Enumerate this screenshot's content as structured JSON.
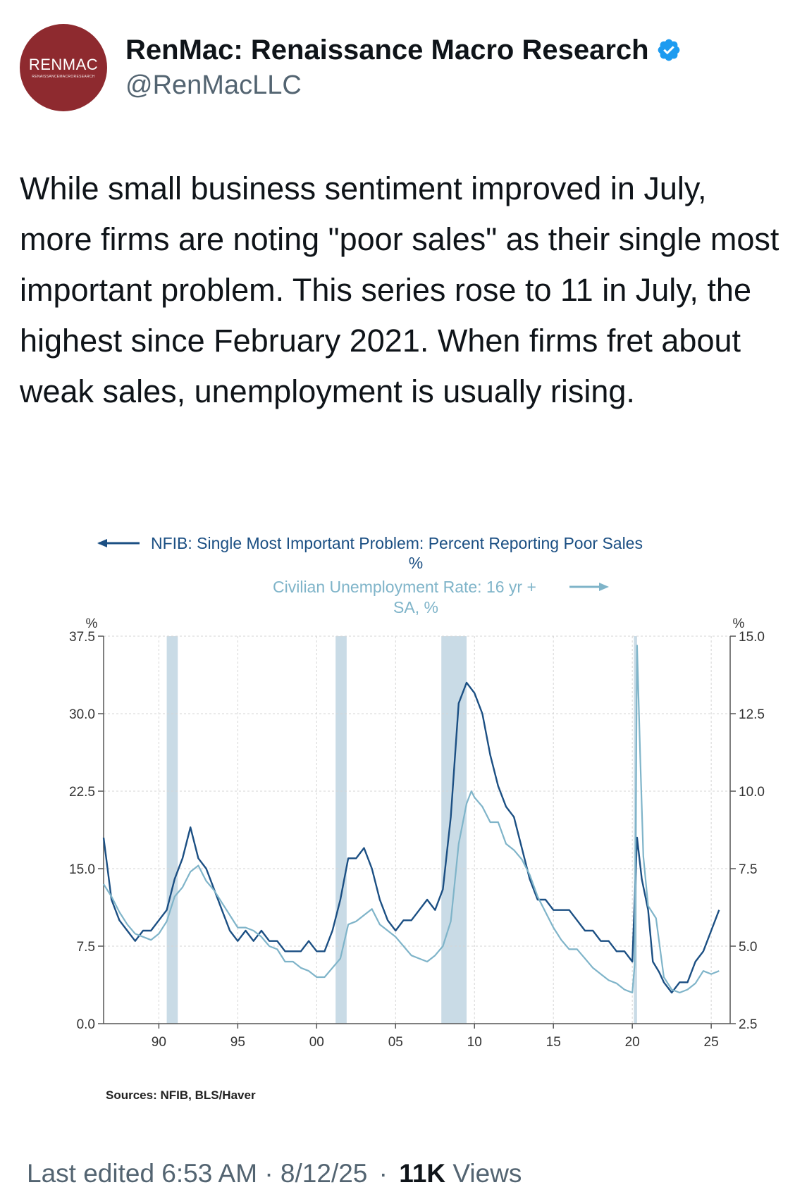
{
  "author": {
    "display_name": "RenMac: Renaissance Macro Research",
    "handle": "@RenMacLLC",
    "logo_text_main": "RENMAC",
    "logo_text_sub": "RENAISSANCEMACRORESEARCH",
    "brand_color": "#8e2a2f",
    "verified_badge_color": "#1d9bf0"
  },
  "tweet": {
    "text": "While small business sentiment improved in July, more firms are noting \"poor sales\" as their single most important problem. This series rose to 11 in July, the highest since February 2021. When firms fret about weak sales, unemployment is usually rising."
  },
  "meta": {
    "edited_label": "Last edited 6:53 AM · 8/12/25",
    "separator": "·",
    "views_count": "11K",
    "views_label": "Views"
  },
  "chart_data": {
    "type": "line",
    "series": [
      {
        "name": "NFIB: Single Most Important Problem: Percent Reporting Poor Sales",
        "unit": "%",
        "axis": "left",
        "color": "#1b4f83",
        "points": [
          [
            1986.5,
            18
          ],
          [
            1987.0,
            12
          ],
          [
            1987.5,
            10
          ],
          [
            1988.0,
            9
          ],
          [
            1988.5,
            8
          ],
          [
            1989.0,
            9
          ],
          [
            1989.5,
            9
          ],
          [
            1990.0,
            10
          ],
          [
            1990.5,
            11
          ],
          [
            1991.0,
            14
          ],
          [
            1991.5,
            16
          ],
          [
            1992.0,
            19
          ],
          [
            1992.5,
            16
          ],
          [
            1993.0,
            15
          ],
          [
            1993.5,
            13
          ],
          [
            1994.0,
            11
          ],
          [
            1994.5,
            9
          ],
          [
            1995.0,
            8
          ],
          [
            1995.5,
            9
          ],
          [
            1996.0,
            8
          ],
          [
            1996.5,
            9
          ],
          [
            1997.0,
            8
          ],
          [
            1997.5,
            8
          ],
          [
            1998.0,
            7
          ],
          [
            1998.5,
            7
          ],
          [
            1999.0,
            7
          ],
          [
            1999.5,
            8
          ],
          [
            2000.0,
            7
          ],
          [
            2000.5,
            7
          ],
          [
            2001.0,
            9
          ],
          [
            2001.5,
            12
          ],
          [
            2002.0,
            16
          ],
          [
            2002.5,
            16
          ],
          [
            2003.0,
            17
          ],
          [
            2003.5,
            15
          ],
          [
            2004.0,
            12
          ],
          [
            2004.5,
            10
          ],
          [
            2005.0,
            9
          ],
          [
            2005.5,
            10
          ],
          [
            2006.0,
            10
          ],
          [
            2006.5,
            11
          ],
          [
            2007.0,
            12
          ],
          [
            2007.5,
            11
          ],
          [
            2008.0,
            13
          ],
          [
            2008.5,
            20
          ],
          [
            2009.0,
            31
          ],
          [
            2009.5,
            33
          ],
          [
            2010.0,
            32
          ],
          [
            2010.5,
            30
          ],
          [
            2011.0,
            26
          ],
          [
            2011.5,
            23
          ],
          [
            2012.0,
            21
          ],
          [
            2012.5,
            20
          ],
          [
            2013.0,
            17
          ],
          [
            2013.5,
            14
          ],
          [
            2014.0,
            12
          ],
          [
            2014.5,
            12
          ],
          [
            2015.0,
            11
          ],
          [
            2015.5,
            11
          ],
          [
            2016.0,
            11
          ],
          [
            2016.5,
            10
          ],
          [
            2017.0,
            9
          ],
          [
            2017.5,
            9
          ],
          [
            2018.0,
            8
          ],
          [
            2018.5,
            8
          ],
          [
            2019.0,
            7
          ],
          [
            2019.5,
            7
          ],
          [
            2020.0,
            6
          ],
          [
            2020.3,
            18
          ],
          [
            2020.6,
            14
          ],
          [
            2021.0,
            11
          ],
          [
            2021.3,
            6
          ],
          [
            2021.7,
            5
          ],
          [
            2022.0,
            4
          ],
          [
            2022.5,
            3
          ],
          [
            2023.0,
            4
          ],
          [
            2023.5,
            4
          ],
          [
            2024.0,
            6
          ],
          [
            2024.5,
            7
          ],
          [
            2025.0,
            9
          ],
          [
            2025.5,
            11
          ]
        ]
      },
      {
        "name": "Civilian Unemployment Rate: 16 yr + SA, %",
        "unit": "%",
        "axis": "right",
        "color": "#7fb4c9",
        "points": [
          [
            1986.5,
            7.0
          ],
          [
            1987.0,
            6.6
          ],
          [
            1987.5,
            6.1
          ],
          [
            1988.0,
            5.7
          ],
          [
            1988.5,
            5.4
          ],
          [
            1989.0,
            5.3
          ],
          [
            1989.5,
            5.2
          ],
          [
            1990.0,
            5.4
          ],
          [
            1990.5,
            5.8
          ],
          [
            1991.0,
            6.6
          ],
          [
            1991.5,
            6.9
          ],
          [
            1992.0,
            7.4
          ],
          [
            1992.5,
            7.6
          ],
          [
            1993.0,
            7.1
          ],
          [
            1993.5,
            6.8
          ],
          [
            1994.0,
            6.4
          ],
          [
            1994.5,
            6.0
          ],
          [
            1995.0,
            5.6
          ],
          [
            1995.5,
            5.6
          ],
          [
            1996.0,
            5.5
          ],
          [
            1996.5,
            5.3
          ],
          [
            1997.0,
            5.0
          ],
          [
            1997.5,
            4.9
          ],
          [
            1998.0,
            4.5
          ],
          [
            1998.5,
            4.5
          ],
          [
            1999.0,
            4.3
          ],
          [
            1999.5,
            4.2
          ],
          [
            2000.0,
            4.0
          ],
          [
            2000.5,
            4.0
          ],
          [
            2001.0,
            4.3
          ],
          [
            2001.5,
            4.6
          ],
          [
            2002.0,
            5.7
          ],
          [
            2002.5,
            5.8
          ],
          [
            2003.0,
            6.0
          ],
          [
            2003.5,
            6.2
          ],
          [
            2004.0,
            5.7
          ],
          [
            2004.5,
            5.5
          ],
          [
            2005.0,
            5.3
          ],
          [
            2005.5,
            5.0
          ],
          [
            2006.0,
            4.7
          ],
          [
            2006.5,
            4.6
          ],
          [
            2007.0,
            4.5
          ],
          [
            2007.5,
            4.7
          ],
          [
            2008.0,
            5.0
          ],
          [
            2008.5,
            5.8
          ],
          [
            2009.0,
            8.3
          ],
          [
            2009.5,
            9.6
          ],
          [
            2009.8,
            10.0
          ],
          [
            2010.0,
            9.8
          ],
          [
            2010.5,
            9.5
          ],
          [
            2011.0,
            9.0
          ],
          [
            2011.5,
            9.0
          ],
          [
            2012.0,
            8.3
          ],
          [
            2012.5,
            8.1
          ],
          [
            2013.0,
            7.8
          ],
          [
            2013.5,
            7.3
          ],
          [
            2014.0,
            6.6
          ],
          [
            2014.5,
            6.1
          ],
          [
            2015.0,
            5.6
          ],
          [
            2015.5,
            5.2
          ],
          [
            2016.0,
            4.9
          ],
          [
            2016.5,
            4.9
          ],
          [
            2017.0,
            4.6
          ],
          [
            2017.5,
            4.3
          ],
          [
            2018.0,
            4.1
          ],
          [
            2018.5,
            3.9
          ],
          [
            2019.0,
            3.8
          ],
          [
            2019.5,
            3.6
          ],
          [
            2020.0,
            3.5
          ],
          [
            2020.15,
            4.4
          ],
          [
            2020.3,
            14.7
          ],
          [
            2020.5,
            11.1
          ],
          [
            2020.7,
            7.9
          ],
          [
            2021.0,
            6.3
          ],
          [
            2021.5,
            5.9
          ],
          [
            2022.0,
            4.0
          ],
          [
            2022.5,
            3.6
          ],
          [
            2023.0,
            3.5
          ],
          [
            2023.5,
            3.6
          ],
          [
            2024.0,
            3.8
          ],
          [
            2024.5,
            4.2
          ],
          [
            2025.0,
            4.1
          ],
          [
            2025.5,
            4.2
          ]
        ]
      }
    ],
    "recessions": [
      [
        1990.5,
        1991.2
      ],
      [
        2001.2,
        2001.9
      ],
      [
        2007.9,
        2009.5
      ],
      [
        2020.1,
        2020.3
      ]
    ],
    "left_axis": {
      "label": "%",
      "ylim": [
        0,
        37.5
      ],
      "ticks": [
        "0.0",
        "7.5",
        "15.0",
        "22.5",
        "30.0",
        "37.5"
      ]
    },
    "right_axis": {
      "label": "%",
      "ylim": [
        2.5,
        15.0
      ],
      "ticks": [
        "2.5",
        "5.0",
        "7.5",
        "10.0",
        "12.5",
        "15.0"
      ]
    },
    "x_axis": {
      "xlim": [
        1986.5,
        2026.2
      ],
      "ticks": [
        1990,
        1995,
        2000,
        2005,
        2010,
        2015,
        2020,
        2025
      ],
      "tick_labels": [
        "90",
        "95",
        "00",
        "05",
        "10",
        "15",
        "20",
        "25"
      ]
    },
    "legend": {
      "line1": "NFIB: Single Most Important Problem: Percent Reporting Poor Sales",
      "line1_unit": "%",
      "line2": "Civilian Unemployment Rate: 16 yr +",
      "line2_unit": "SA, %"
    },
    "grid": true,
    "recession_color": "#c9dbe6",
    "source": "Sources:  NFIB, BLS/Haver"
  }
}
